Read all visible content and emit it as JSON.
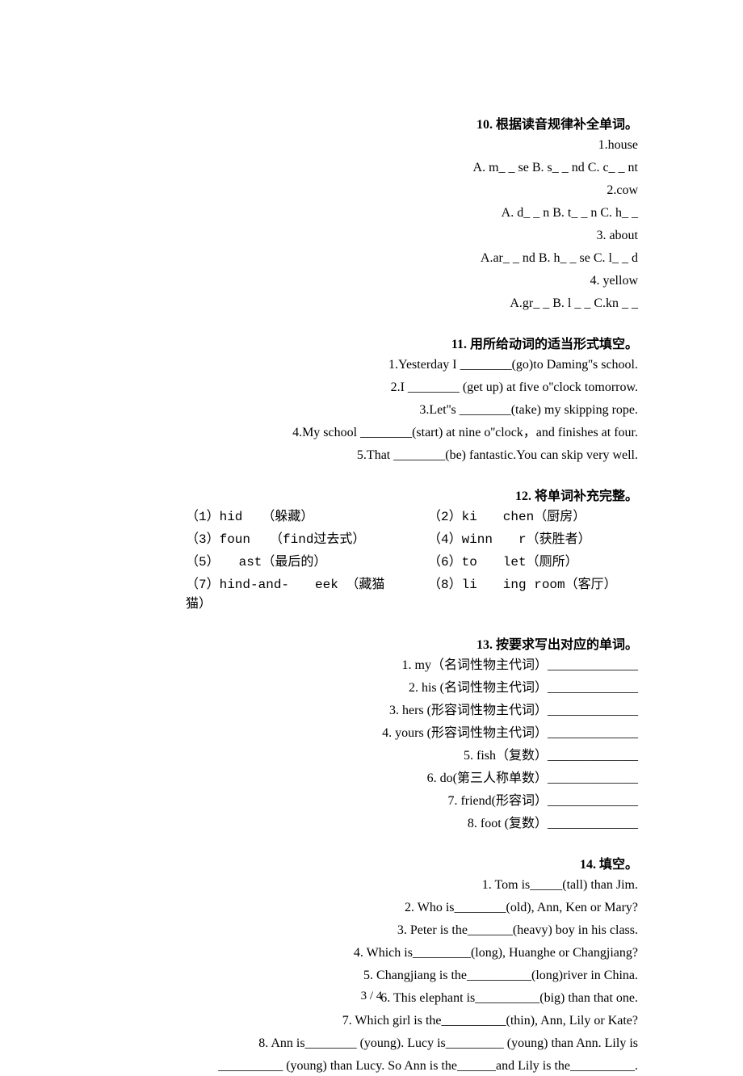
{
  "section10": {
    "heading": "10. 根据读音规律补全单词。",
    "items": [
      "1.house",
      "A. m_ _ se   B. s_ _ nd   C. c_ _ nt",
      "2.cow",
      "A. d_ _ n B. t_ _ n   C. h_ _",
      "3. about",
      "A.ar_ _ nd B. h_ _ se C. l_ _ d",
      "4. yellow",
      "A.gr_ _ B. l _ _   C.kn _ _"
    ]
  },
  "section11": {
    "heading": "11. 用所给动词的适当形式填空。",
    "items": [
      "1.Yesterday I ________(go)to Daming''s school.",
      "2.I ________ (get up) at five o''clock tomorrow.",
      "3.Let''s ________(take) my skipping rope.",
      "4.My school ________(start) at nine o''clock，and finishes at four.",
      "5.That ________(be) fantastic.You can skip very well."
    ]
  },
  "section12": {
    "heading": "12. 将单词补充完整。",
    "rows": [
      {
        "left": "（1）hid　　（躲藏）",
        "right": "（2）ki　　chen（厨房）"
      },
      {
        "left": "（3）foun　　（find过去式）",
        "right": "（4）winn　　r（获胜者）"
      },
      {
        "left": "（5）　　ast（最后的）",
        "right": "（6）to　　let（厕所）"
      },
      {
        "left": "（7）hind-and-　　eek （藏猫猫）",
        "right": "（8）li　　ing room（客厅）"
      }
    ]
  },
  "section13": {
    "heading": "13. 按要求写出对应的单词。",
    "items": [
      "1. my（名词性物主代词）______________",
      "2. his (名词性物主代词）______________",
      "3. hers (形容词性物主代词）______________",
      "4. yours (形容词性物主代词）______________",
      "5. fish（复数）______________",
      "6. do(第三人称单数）______________",
      "7. friend(形容词）______________",
      "8. foot (复数）______________"
    ]
  },
  "section14": {
    "heading": "14. 填空。",
    "items": [
      "1. Tom is_____(tall) than Jim.",
      "2. Who is________(old), Ann, Ken or Mary?",
      "3. Peter is the_______(heavy) boy in his class.",
      "4. Which is_________(long), Huanghe or Changjiang?",
      "5. Changjiang is the__________(long)river in China.",
      "6. This elephant is__________(big) than that one.",
      "7. Which girl is the__________(thin), Ann, Lily or Kate?",
      "8. Ann is________ (young). Lucy is_________ (young) than Ann. Lily is",
      "__________ (young) than Lucy. So Ann is the______and Lily is the__________."
    ]
  },
  "page_number": "3 / 4"
}
